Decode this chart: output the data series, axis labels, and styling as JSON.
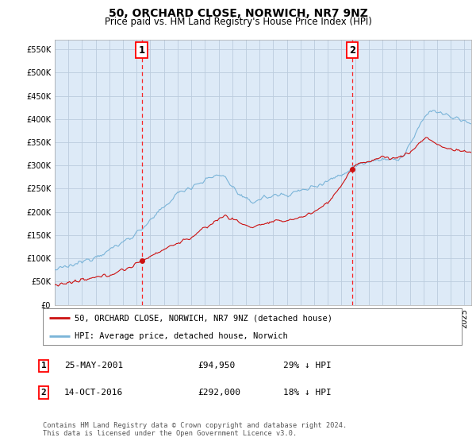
{
  "title": "50, ORCHARD CLOSE, NORWICH, NR7 9NZ",
  "subtitle": "Price paid vs. HM Land Registry's House Price Index (HPI)",
  "ylim": [
    0,
    570000
  ],
  "yticks": [
    0,
    50000,
    100000,
    150000,
    200000,
    250000,
    300000,
    350000,
    400000,
    450000,
    500000,
    550000
  ],
  "ytick_labels": [
    "£0",
    "£50K",
    "£100K",
    "£150K",
    "£200K",
    "£250K",
    "£300K",
    "£350K",
    "£400K",
    "£450K",
    "£500K",
    "£550K"
  ],
  "background_color": "#ffffff",
  "plot_bg_color": "#ddeaf7",
  "grid_color": "#bbccdd",
  "hpi_color": "#7ab4d8",
  "price_color": "#cc1111",
  "sale1_date": 2001.38,
  "sale1_price": 94950,
  "sale2_date": 2016.78,
  "sale2_price": 292000,
  "legend_entry1": "50, ORCHARD CLOSE, NORWICH, NR7 9NZ (detached house)",
  "legend_entry2": "HPI: Average price, detached house, Norwich",
  "table_row1": [
    "1",
    "25-MAY-2001",
    "£94,950",
    "29% ↓ HPI"
  ],
  "table_row2": [
    "2",
    "14-OCT-2016",
    "£292,000",
    "18% ↓ HPI"
  ],
  "footnote": "Contains HM Land Registry data © Crown copyright and database right 2024.\nThis data is licensed under the Open Government Licence v3.0.",
  "title_fontsize": 10,
  "subtitle_fontsize": 8.5,
  "tick_fontsize": 7,
  "xstart": 1995,
  "xend": 2025.5
}
